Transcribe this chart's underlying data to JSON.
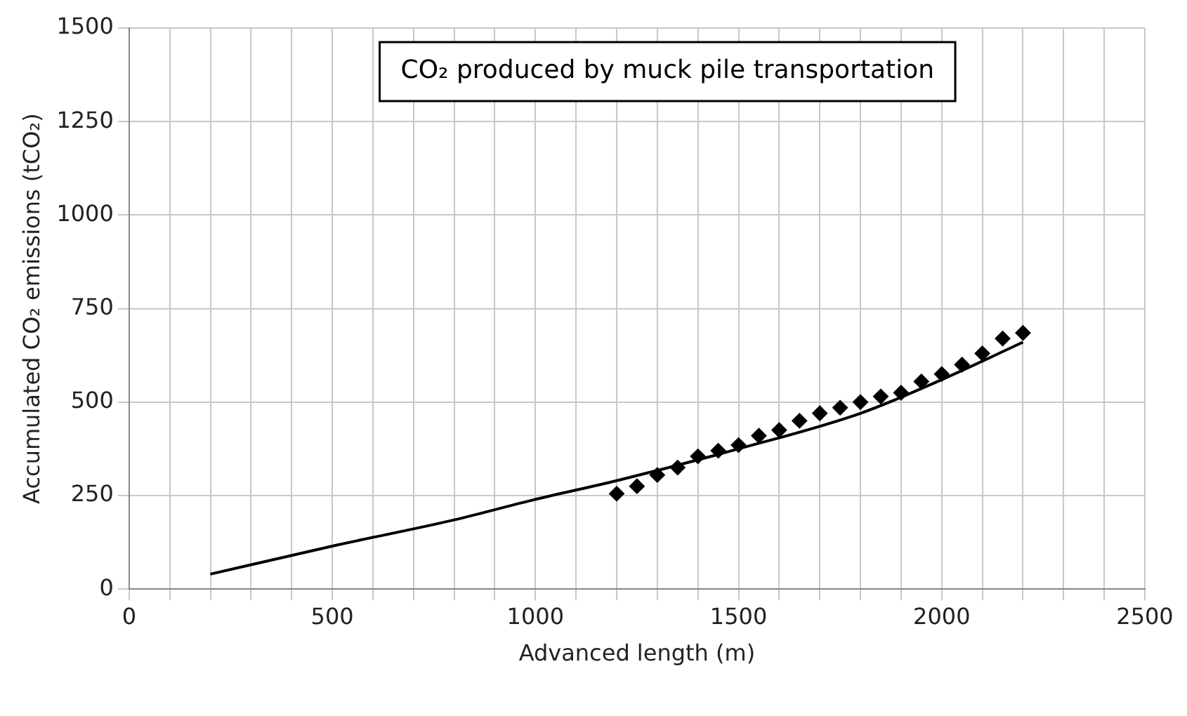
{
  "chart_data": {
    "type": "scatter",
    "title": "CO₂ produced by muck pile transportation",
    "xlabel": "Advanced length (m)",
    "ylabel": "Accumulated CO₂ emissions (tCO₂)",
    "xlim": [
      0,
      2500
    ],
    "xticks": [
      0,
      500,
      1000,
      1500,
      2000,
      2500
    ],
    "ylim": [
      0,
      1500
    ],
    "yticks": [
      0,
      250,
      500,
      750,
      1000,
      1250,
      1500
    ],
    "grid": true,
    "series": [
      {
        "marker": "diamond",
        "color": "#000000",
        "x": [
          1200,
          1250,
          1300,
          1350,
          1400,
          1450,
          1500,
          1550,
          1600,
          1650,
          1700,
          1750,
          1800,
          1850,
          1900,
          1950,
          2000,
          2050,
          2100,
          2150,
          2200
        ],
        "values": [
          255,
          275,
          305,
          325,
          355,
          370,
          385,
          410,
          425,
          450,
          470,
          485,
          500,
          515,
          525,
          555,
          575,
          600,
          630,
          670,
          685
        ]
      },
      {
        "type": "line",
        "marker": "none",
        "line_style": "solid",
        "color": "#000000",
        "x": [
          200,
          500,
          800,
          1000,
          1200,
          1500,
          1800,
          2000,
          2200
        ],
        "values": [
          40,
          115,
          185,
          240,
          290,
          375,
          470,
          560,
          660
        ]
      }
    ]
  }
}
